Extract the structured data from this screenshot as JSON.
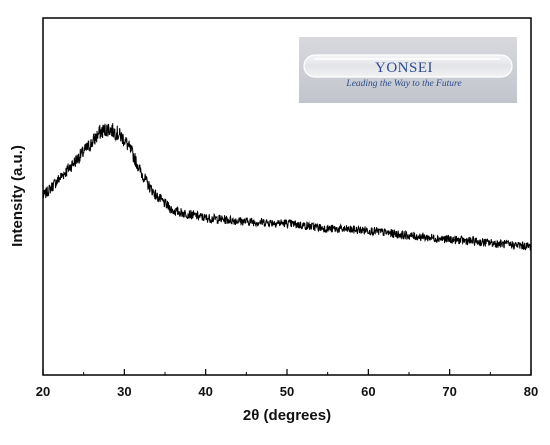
{
  "chart_data": {
    "type": "line",
    "title": "",
    "xlabel": "2θ (degrees)",
    "ylabel": "Intensity (a.u.)",
    "xlim": [
      20,
      80
    ],
    "x_ticks": [
      20,
      30,
      40,
      50,
      60,
      70,
      80
    ],
    "y_ticks_shown": false,
    "grid": false,
    "series": [
      {
        "x": [
          20,
          22,
          24,
          26,
          27,
          28,
          29,
          30,
          31,
          32,
          33,
          34,
          35,
          36,
          38,
          40,
          45,
          50,
          55,
          60,
          65,
          70,
          75,
          80
        ],
        "y": [
          0.5,
          0.55,
          0.6,
          0.65,
          0.68,
          0.69,
          0.68,
          0.66,
          0.62,
          0.57,
          0.53,
          0.5,
          0.48,
          0.46,
          0.45,
          0.44,
          0.43,
          0.425,
          0.41,
          0.405,
          0.39,
          0.38,
          0.37,
          0.36
        ],
        "color": "#000000",
        "noise": "high-frequency"
      }
    ],
    "inset": {
      "type": "photo",
      "description_color": "#2a4c8c",
      "lettering": [
        "YONSEI",
        "Leading the Way to the Future"
      ]
    }
  }
}
